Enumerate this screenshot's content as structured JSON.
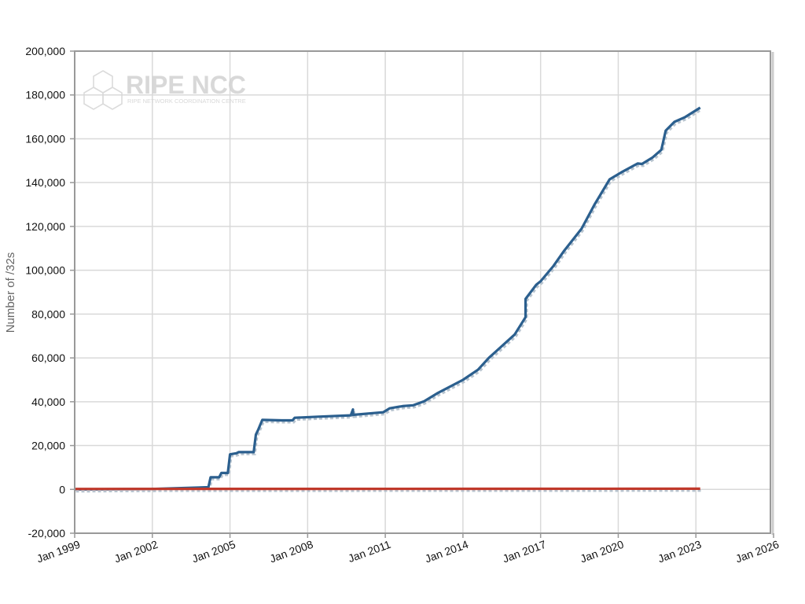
{
  "chart_data": {
    "type": "line",
    "title": "",
    "xlabel": "",
    "ylabel": "Number of  /32s",
    "ylim": [
      -20000,
      200000
    ],
    "xlim": [
      "1999-01",
      "2026-01"
    ],
    "grid": true,
    "y_ticks": [
      "-20,000",
      "0",
      "20,000",
      "40,000",
      "60,000",
      "80,000",
      "100,000",
      "120,000",
      "140,000",
      "160,000",
      "180,000",
      "200,000"
    ],
    "y_tick_values": [
      -20000,
      0,
      20000,
      40000,
      60000,
      80000,
      100000,
      120000,
      140000,
      160000,
      180000,
      200000
    ],
    "x_ticks": [
      "Jan 1999",
      "Jan 2002",
      "Jan 2005",
      "Jan 2008",
      "Jan 2011",
      "Jan 2014",
      "Jan 2017",
      "Jan 2020",
      "Jan 2023",
      "Jan 2026"
    ],
    "x_tick_values": [
      "1999-01",
      "2002-01",
      "2005-01",
      "2008-01",
      "2011-01",
      "2014-01",
      "2017-01",
      "2020-01",
      "2023-01",
      "2026-01"
    ],
    "series": [
      {
        "color": "#2b5f8e",
        "points": [
          [
            "1999-01",
            0
          ],
          [
            "2002-01",
            200
          ],
          [
            "2004-03",
            1000
          ],
          [
            "2004-04",
            5500
          ],
          [
            "2004-08",
            5500
          ],
          [
            "2004-09",
            7500
          ],
          [
            "2004-12",
            7500
          ],
          [
            "2005-01",
            16000
          ],
          [
            "2005-04",
            16500
          ],
          [
            "2005-05",
            17000
          ],
          [
            "2005-12",
            17000
          ],
          [
            "2006-01",
            25000
          ],
          [
            "2006-02",
            27000
          ],
          [
            "2006-04",
            31700
          ],
          [
            "2007-01",
            31500
          ],
          [
            "2007-06",
            31500
          ],
          [
            "2007-07",
            32700
          ],
          [
            "2008-06",
            33200
          ],
          [
            "2009-09",
            33800
          ],
          [
            "2009-10",
            36500
          ],
          [
            "2009-10",
            34000
          ],
          [
            "2010-12",
            35200
          ],
          [
            "2011-03",
            37000
          ],
          [
            "2011-09",
            38000
          ],
          [
            "2012-02",
            38400
          ],
          [
            "2012-07",
            40200
          ],
          [
            "2013-01",
            43800
          ],
          [
            "2014-01",
            50000
          ],
          [
            "2014-08",
            54600
          ],
          [
            "2015-01",
            60000
          ],
          [
            "2016-01",
            70700
          ],
          [
            "2016-06",
            78600
          ],
          [
            "2016-06",
            86900
          ],
          [
            "2016-11",
            93400
          ],
          [
            "2017-01",
            95000
          ],
          [
            "2017-07",
            102000
          ],
          [
            "2017-12",
            109000
          ],
          [
            "2018-08",
            119000
          ],
          [
            "2019-02",
            130000
          ],
          [
            "2019-09",
            141500
          ],
          [
            "2020-03",
            145000
          ],
          [
            "2020-10",
            148700
          ],
          [
            "2020-12",
            148500
          ],
          [
            "2021-05",
            151500
          ],
          [
            "2021-09",
            155000
          ],
          [
            "2021-11",
            163700
          ],
          [
            "2022-03",
            167700
          ],
          [
            "2022-08",
            169900
          ],
          [
            "2023-03",
            174200
          ]
        ]
      },
      {
        "color": "#c0392b",
        "points": [
          [
            "1999-01",
            200
          ],
          [
            "2023-03",
            300
          ]
        ]
      }
    ]
  },
  "watermark": {
    "name": "RIPE NCC",
    "subtitle": "RIPE NETWORK COORDINATION CENTRE"
  }
}
